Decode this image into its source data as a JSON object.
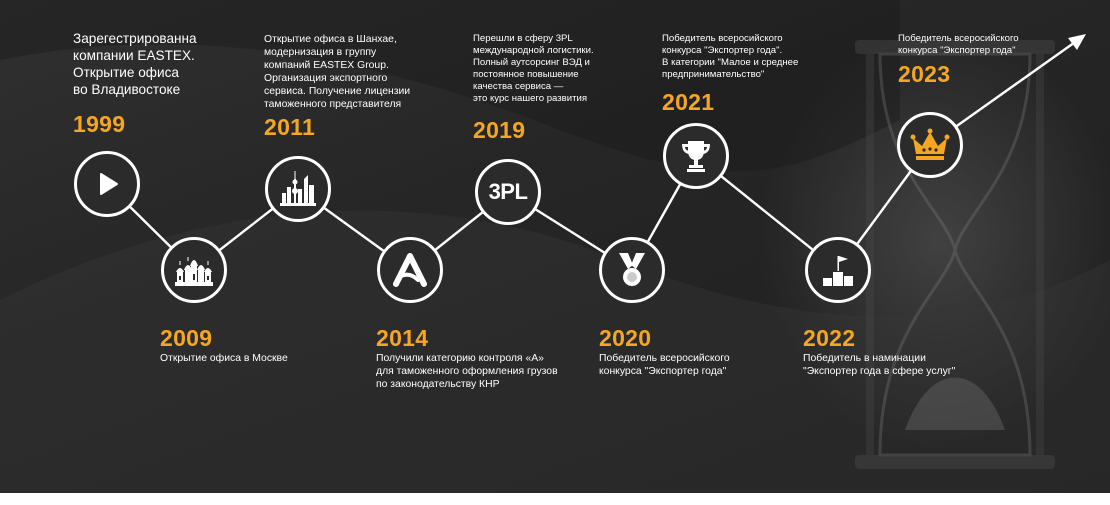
{
  "milestones": [
    {
      "year": "1999",
      "text": "Зарегестрированна\nкомпании EASTEX.\nОткрытие офиса\nво Владивостоке",
      "icon": "play-icon"
    },
    {
      "year": "2009",
      "text": "Открытие офиса в Москве",
      "icon": "kremlin-icon"
    },
    {
      "year": "2011",
      "text": "Открытие офиса в Шанхае,\nмодернизация в группу\nкомпаний EASTEX Group.\nОрганизация экспортного\nсервиса. Получение лицензии\nтаможенного представителя",
      "icon": "shanghai-skyline-icon"
    },
    {
      "year": "2014",
      "text": "Получили категорию контроля «А»\nдля таможенного оформления грузов\nпо законодательству КНР",
      "icon": "letter-a-icon"
    },
    {
      "year": "2019",
      "text": "Перешли в сферу 3PL\nмеждународной логистики.\nПолный аутсорсинг ВЭД и\nпостоянное повышение\nкачества сервиса —\nэто курс нашего развития",
      "icon": "3pl-icon",
      "icon_text": "3PL"
    },
    {
      "year": "2020",
      "text": "Победитель всеросийского\nконкурса \"Экспортер года\"",
      "icon": "medal-icon"
    },
    {
      "year": "2021",
      "text": "Победитель всеросийского\nконкурса \"Экспортер года\".\nВ категории \"Малое и среднее\nпредпринимательство\"",
      "icon": "trophy-icon"
    },
    {
      "year": "2022",
      "text": "Победитель в наминации\n\"Экспортер года в сфере услуг\"",
      "icon": "podium-flag-icon"
    },
    {
      "year": "2023",
      "text": "Победитель всеросийского\nконкурса \"Экспортер года\"",
      "icon": "crown-icon"
    }
  ],
  "colors": {
    "accent": "#f5a623",
    "line": "#ffffff",
    "background": "#262626"
  }
}
